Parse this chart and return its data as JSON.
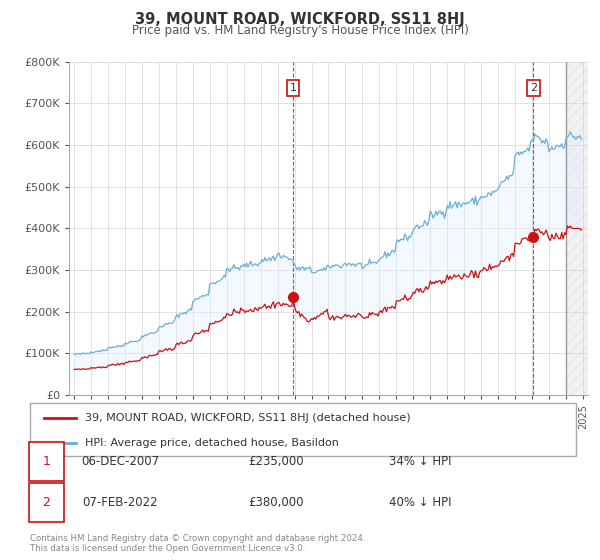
{
  "title": "39, MOUNT ROAD, WICKFORD, SS11 8HJ",
  "subtitle": "Price paid vs. HM Land Registry's House Price Index (HPI)",
  "ylim": [
    0,
    800000
  ],
  "yticks": [
    0,
    100000,
    200000,
    300000,
    400000,
    500000,
    600000,
    700000,
    800000
  ],
  "ytick_labels": [
    "£0",
    "£100K",
    "£200K",
    "£300K",
    "£400K",
    "£500K",
    "£600K",
    "£700K",
    "£800K"
  ],
  "hpi_color": "#6aaed6",
  "hpi_fill_color": "#ddeeff",
  "price_color": "#cc1111",
  "marker_color": "#cc1111",
  "annotation_box_color": "#cc1111",
  "legend_entry1": "39, MOUNT ROAD, WICKFORD, SS11 8HJ (detached house)",
  "legend_entry2": "HPI: Average price, detached house, Basildon",
  "transaction1_label": "1",
  "transaction1_date": "06-DEC-2007",
  "transaction1_price": "£235,000",
  "transaction1_hpi": "34% ↓ HPI",
  "transaction2_label": "2",
  "transaction2_date": "07-FEB-2022",
  "transaction2_price": "£380,000",
  "transaction2_hpi": "40% ↓ HPI",
  "footnote": "Contains HM Land Registry data © Crown copyright and database right 2024.\nThis data is licensed under the Open Government Licence v3.0.",
  "background_color": "#ffffff",
  "grid_color": "#cccccc",
  "marker1_x": 2007.92,
  "marker1_y": 235000,
  "marker2_x": 2022.08,
  "marker2_y": 380000,
  "xmin": 1994.7,
  "xmax": 2025.3,
  "hatch_start": 2024.0
}
